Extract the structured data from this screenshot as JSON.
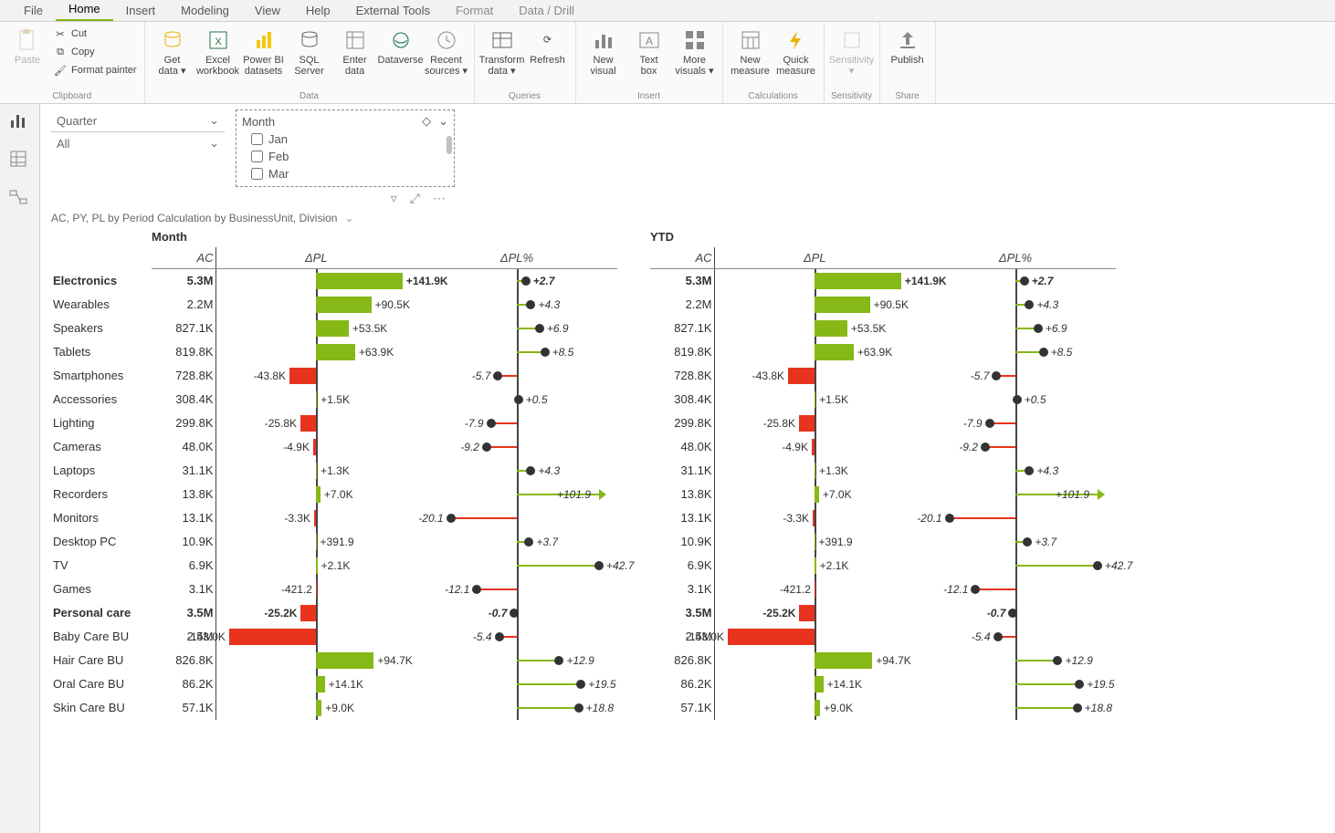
{
  "colors": {
    "positive": "#86b817",
    "negative": "#e8331e",
    "axis": "#444444",
    "text": "#323130"
  },
  "menubar": {
    "items": [
      "File",
      "Home",
      "Insert",
      "Modeling",
      "View",
      "Help",
      "External Tools",
      "Format",
      "Data / Drill"
    ],
    "active": "Home",
    "contextual_start": 7
  },
  "ribbon": {
    "clipboard": {
      "label": "Clipboard",
      "paste": "Paste",
      "cut": "Cut",
      "copy": "Copy",
      "format_painter": "Format painter"
    },
    "data": {
      "label": "Data",
      "buttons": [
        {
          "key": "getdata",
          "label": "Get\ndata ▾"
        },
        {
          "key": "excel",
          "label": "Excel\nworkbook"
        },
        {
          "key": "pbi",
          "label": "Power BI\ndatasets"
        },
        {
          "key": "sql",
          "label": "SQL\nServer"
        },
        {
          "key": "enter",
          "label": "Enter\ndata"
        },
        {
          "key": "dataverse",
          "label": "Dataverse"
        },
        {
          "key": "recent",
          "label": "Recent\nsources ▾"
        }
      ]
    },
    "queries": {
      "label": "Queries",
      "transform": "Transform\ndata ▾",
      "refresh": "Refresh"
    },
    "insert": {
      "label": "Insert",
      "newvisual": "New\nvisual",
      "textbox": "Text\nbox",
      "more": "More\nvisuals ▾"
    },
    "calc": {
      "label": "Calculations",
      "newmeasure": "New\nmeasure",
      "quick": "Quick\nmeasure"
    },
    "sens": {
      "label": "Sensitivity",
      "btn": "Sensitivity\n▾"
    },
    "share": {
      "label": "Share",
      "publish": "Publish"
    }
  },
  "slicers": {
    "quarter": {
      "title": "Quarter",
      "value": "All"
    },
    "month": {
      "title": "Month",
      "options": [
        "Jan",
        "Feb",
        "Mar"
      ]
    }
  },
  "visual": {
    "title": "AC, PY, PL by Period Calculation by BusinessUnit, Division",
    "sections": [
      "Month",
      "YTD"
    ],
    "columns": [
      "AC",
      "ΔPL",
      "ΔPL%"
    ],
    "dpl_scale_k": 150,
    "pct_scale": 25,
    "rows": [
      {
        "label": "Electronics",
        "bold": true,
        "ac": "5.3M",
        "dpl_k": 141.9,
        "dpl_lbl": "+141.9K",
        "pct": 2.7,
        "pct_lbl": "+2.7"
      },
      {
        "label": "Wearables",
        "ac": "2.2M",
        "dpl_k": 90.5,
        "dpl_lbl": "+90.5K",
        "pct": 4.3,
        "pct_lbl": "+4.3"
      },
      {
        "label": "Speakers",
        "ac": "827.1K",
        "dpl_k": 53.5,
        "dpl_lbl": "+53.5K",
        "pct": 6.9,
        "pct_lbl": "+6.9"
      },
      {
        "label": "Tablets",
        "ac": "819.8K",
        "dpl_k": 63.9,
        "dpl_lbl": "+63.9K",
        "pct": 8.5,
        "pct_lbl": "+8.5"
      },
      {
        "label": "Smartphones",
        "ac": "728.8K",
        "dpl_k": -43.8,
        "dpl_lbl": "-43.8K",
        "pct": -5.7,
        "pct_lbl": "-5.7"
      },
      {
        "label": "Accessories",
        "ac": "308.4K",
        "dpl_k": 1.5,
        "dpl_lbl": "+1.5K",
        "pct": 0.5,
        "pct_lbl": "+0.5"
      },
      {
        "label": "Lighting",
        "ac": "299.8K",
        "dpl_k": -25.8,
        "dpl_lbl": "-25.8K",
        "pct": -7.9,
        "pct_lbl": "-7.9"
      },
      {
        "label": "Cameras",
        "ac": "48.0K",
        "dpl_k": -4.9,
        "dpl_lbl": "-4.9K",
        "pct": -9.2,
        "pct_lbl": "-9.2"
      },
      {
        "label": "Laptops",
        "ac": "31.1K",
        "dpl_k": 1.3,
        "dpl_lbl": "+1.3K",
        "pct": 4.3,
        "pct_lbl": "+4.3"
      },
      {
        "label": "Recorders",
        "ac": "13.8K",
        "dpl_k": 7.0,
        "dpl_lbl": "+7.0K",
        "pct": 101.9,
        "pct_lbl": "+101.9",
        "overflow": true
      },
      {
        "label": "Monitors",
        "ac": "13.1K",
        "dpl_k": -3.3,
        "dpl_lbl": "-3.3K",
        "pct": -20.1,
        "pct_lbl": "-20.1"
      },
      {
        "label": "Desktop PC",
        "ac": "10.9K",
        "dpl_k": 0.4,
        "dpl_lbl": "+391.9",
        "pct": 3.7,
        "pct_lbl": "+3.7"
      },
      {
        "label": "TV",
        "ac": "6.9K",
        "dpl_k": 2.1,
        "dpl_lbl": "+2.1K",
        "pct": 42.7,
        "pct_lbl": "+42.7"
      },
      {
        "label": "Games",
        "ac": "3.1K",
        "dpl_k": -0.4,
        "dpl_lbl": "-421.2",
        "pct": -12.1,
        "pct_lbl": "-12.1"
      },
      {
        "label": "Personal care",
        "bold": true,
        "ac": "3.5M",
        "dpl_k": -25.2,
        "dpl_lbl": "-25.2K",
        "pct": -0.7,
        "pct_lbl": "-0.7"
      },
      {
        "label": "Baby Care BU",
        "ac": "2.5M",
        "dpl_k": -143.0,
        "dpl_lbl": "-143.0K",
        "pct": -5.4,
        "pct_lbl": "-5.4"
      },
      {
        "label": "Hair Care BU",
        "ac": "826.8K",
        "dpl_k": 94.7,
        "dpl_lbl": "+94.7K",
        "pct": 12.9,
        "pct_lbl": "+12.9"
      },
      {
        "label": "Oral Care BU",
        "ac": "86.2K",
        "dpl_k": 14.1,
        "dpl_lbl": "+14.1K",
        "pct": 19.5,
        "pct_lbl": "+19.5"
      },
      {
        "label": "Skin Care BU",
        "ac": "57.1K",
        "dpl_k": 9.0,
        "dpl_lbl": "+9.0K",
        "pct": 18.8,
        "pct_lbl": "+18.8"
      }
    ]
  }
}
